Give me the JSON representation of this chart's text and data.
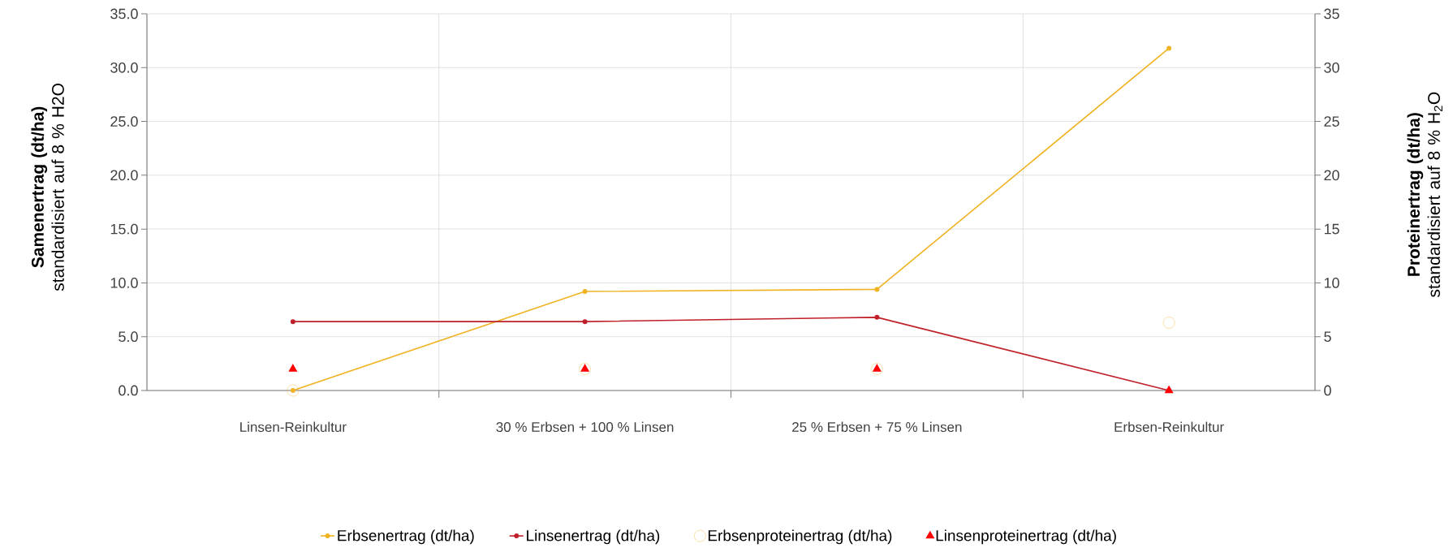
{
  "chart_data": {
    "type": "line",
    "categories": [
      "Linsen-Reinkultur",
      "30 % Erbsen + 100 % Linsen",
      "25 % Erbsen + 75 % Linsen",
      "Erbsen-Reinkultur"
    ],
    "series": [
      {
        "name": "Erbsenertrag (dt/ha)",
        "color": "#f0b323",
        "values": [
          0,
          9.2,
          9.4,
          31.8
        ],
        "marker": "circle"
      },
      {
        "name": "Linsenertrag (dt/ha)",
        "color": "#c0202a",
        "values": [
          6.4,
          6.4,
          6.8,
          0
        ],
        "marker": "circle"
      },
      {
        "name": "Erbsenproteinertrag (dt/ha)",
        "type": "scatter",
        "axis": "y2",
        "color": "#f0b323",
        "values": [
          0,
          2,
          2,
          6.3
        ],
        "marker": "circle"
      },
      {
        "name": "Linsenproteinertrag (dt/ha)",
        "type": "scatter",
        "axis": "y2",
        "color": "#ff0000",
        "values": [
          2,
          2,
          2,
          0
        ],
        "marker": "triangle"
      }
    ],
    "ylabel": "**Samenertrag (dt/ha)** standardisiert auf 8 % H2O",
    "y2label": "**Proteinertrag (dt/ha)** standardisiert auf 8 % H$_{2}$O",
    "ylim": [
      0,
      35
    ],
    "yticks": [
      {
        "value": 0,
        "label": "0.0"
      },
      {
        "value": 5,
        "label": "5.0"
      },
      {
        "value": 10,
        "label": "10.0"
      },
      {
        "value": 15,
        "label": "15.0"
      },
      {
        "value": 20,
        "label": "20.0"
      },
      {
        "value": 25,
        "label": "25.0"
      },
      {
        "value": 30,
        "label": "30.0"
      },
      {
        "value": 35,
        "label": "35.0"
      }
    ],
    "y2lim": [
      0,
      35
    ],
    "y2ticks": [
      0,
      5,
      10,
      15,
      20,
      25,
      30,
      35
    ],
    "grid": true,
    "legend": "bottom"
  }
}
